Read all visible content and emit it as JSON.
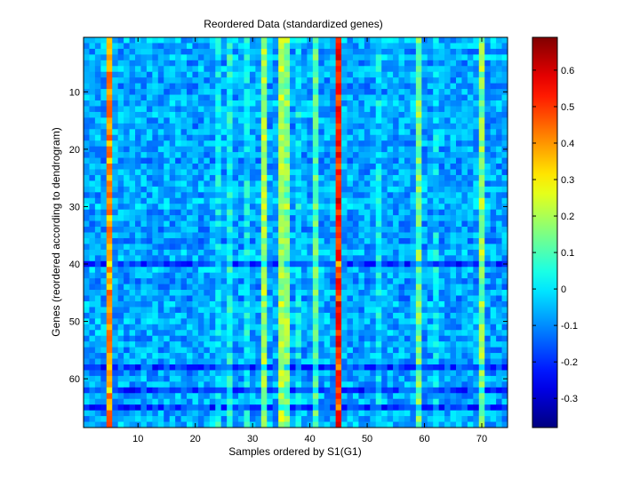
{
  "chart_data": {
    "type": "heatmap",
    "title": "Reordered Data (standardized genes)",
    "xlabel": "Samples ordered by S1(G1)",
    "ylabel": "Genes (reordered according to dendrogram)",
    "n_rows": 68,
    "n_cols": 74,
    "xlim": [
      0.5,
      74.5
    ],
    "ylim": [
      0.5,
      68.5
    ],
    "y_direction": "reversed",
    "x_ticks": [
      10,
      20,
      30,
      40,
      50,
      60,
      70
    ],
    "y_ticks": [
      10,
      20,
      30,
      40,
      50,
      60
    ],
    "colormap": "jet",
    "clim": [
      -0.38,
      0.69
    ],
    "colorbar_ticks": [
      -0.3,
      -0.2,
      -0.1,
      0,
      0.1,
      0.2,
      0.3,
      0.4,
      0.5,
      0.6
    ],
    "column_effects": [
      {
        "sample": 5,
        "value": 0.47
      },
      {
        "sample": 45,
        "value": 0.6
      },
      {
        "sample": 32,
        "value": 0.26
      },
      {
        "sample": 35,
        "value": 0.28
      },
      {
        "sample": 36,
        "value": 0.23
      },
      {
        "sample": 70,
        "value": 0.24
      },
      {
        "sample": 59,
        "value": 0.21
      },
      {
        "sample": 41,
        "value": 0.19
      },
      {
        "sample": 26,
        "value": 0.1
      },
      {
        "sample": 24,
        "value": 0.08
      },
      {
        "sample": 29,
        "value": 0.08
      },
      {
        "sample": 38,
        "value": 0.06
      },
      {
        "sample": 52,
        "value": 0.07
      },
      {
        "sample": 62,
        "value": 0.06
      }
    ],
    "baseline": -0.07,
    "noise_amplitude": 0.08,
    "low_rows": [
      40,
      58,
      62,
      65
    ]
  }
}
